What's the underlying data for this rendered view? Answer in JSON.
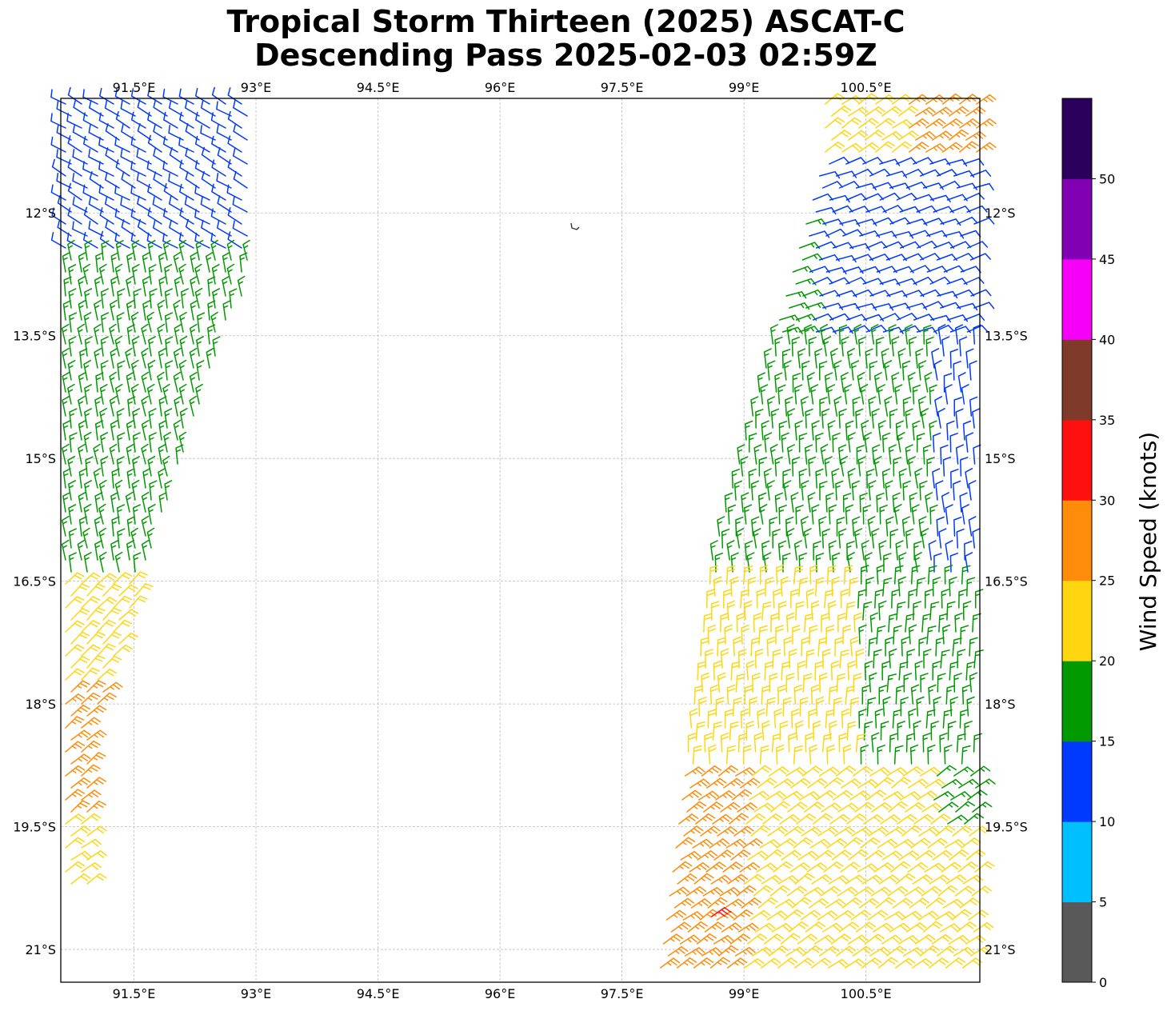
{
  "title": {
    "line1": "Tropical Storm Thirteen (2025) ASCAT-C",
    "line2": "Descending Pass 2025-02-03 02:59Z"
  },
  "map": {
    "lon_range": [
      90.6,
      101.9
    ],
    "lat_range": [
      -21.4,
      -10.6
    ],
    "lon_ticks": [
      "91.5°E",
      "93°E",
      "94.5°E",
      "96°E",
      "97.5°E",
      "99°E",
      "100.5°E"
    ],
    "lat_ticks": [
      "12°S",
      "13.5°S",
      "15°S",
      "16.5°S",
      "18°S",
      "19.5°S",
      "21°S"
    ],
    "gridlines": true,
    "island_marker": "land-outline"
  },
  "colorbar": {
    "label": "Wind Speed (knots)",
    "ticks": [
      "0",
      "5",
      "10",
      "15",
      "20",
      "25",
      "30",
      "35",
      "40",
      "45",
      "50"
    ],
    "colors": [
      "#595959",
      "#00bfff",
      "#0039ff",
      "#009900",
      "#ffd610",
      "#ff8c0a",
      "#ff1010",
      "#803a2a",
      "#f700f7",
      "#8200b4",
      "#2b005c"
    ]
  },
  "chart_data": {
    "type": "wind-barbs",
    "swaths": [
      {
        "name": "west swath",
        "lon_extent": [
          90.6,
          93.0
        ],
        "lat_extent": [
          -20.4,
          -10.7
        ]
      },
      {
        "name": "east swath",
        "lon_extent": [
          97.9,
          101.9
        ],
        "lat_extent": [
          -21.4,
          -10.6
        ]
      }
    ],
    "speed_zones_knots": {
      "west": [
        [
          "-10.6 to -12.5",
          "10-15"
        ],
        [
          "-12.5 to -16.5",
          "15-20"
        ],
        [
          "-16.5 to -17.8",
          "20-25"
        ],
        [
          "-17.8 to -19.4",
          "25-30"
        ],
        [
          "-19.4 to -20.4",
          "20-25"
        ]
      ],
      "east": [
        [
          "-10.6 to -11.3",
          "20-30"
        ],
        [
          "-11.3 to -13.5",
          "10-15"
        ],
        [
          "-13.5 to -16.4",
          "15-20"
        ],
        [
          "-16.4 to -18.8",
          "20-25"
        ],
        [
          "-18.8 to -21.4",
          "25-30"
        ]
      ],
      "max_barb": {
        "lon": 98.6,
        "lat": -20.6,
        "knots": "30-35"
      }
    }
  }
}
